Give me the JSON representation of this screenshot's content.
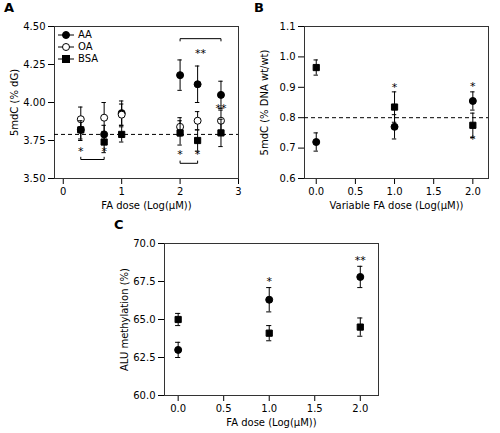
{
  "chart_data": [
    {
      "type": "scatter",
      "title": "A",
      "xlabel": "FA dose (Log(μM))",
      "ylabel": "5mdC (% dG)",
      "xlim": [
        -0.15,
        3.0
      ],
      "ylim": [
        3.5,
        4.5
      ],
      "xticks": [
        0,
        1,
        2,
        3
      ],
      "yticks": [
        {
          "value": 3.5,
          "label": "3.50"
        },
        3.75,
        {
          "value": 4.0,
          "label": "4.00"
        },
        4.25,
        {
          "value": 4.5,
          "label": "4.50"
        }
      ],
      "legend": "upper left",
      "series": [
        {
          "name": "AA",
          "color": "black",
          "marker": "circle",
          "x": [
            0.3,
            0.7,
            1.0,
            2.0,
            2.3,
            2.7
          ],
          "values": [
            3.82,
            3.79,
            3.93,
            4.18,
            4.12,
            4.05
          ],
          "yerr": [
            0.07,
            0.06,
            0.08,
            0.1,
            0.12,
            0.09
          ]
        },
        {
          "name": "OA",
          "color": "black",
          "marker": "open_circle",
          "x": [
            0.3,
            0.7,
            1.0,
            2.0,
            2.3,
            2.7
          ],
          "values": [
            3.89,
            3.9,
            3.92,
            3.84,
            3.88,
            3.88
          ],
          "yerr": [
            0.08,
            0.1,
            0.07,
            0.06,
            0.06,
            0.07
          ]
        },
        {
          "name": "BSA",
          "color": "black",
          "marker": "square",
          "x": [
            0.3,
            0.7,
            1.0,
            2.0,
            2.3,
            2.7
          ],
          "values": [
            3.82,
            3.74,
            3.79,
            3.8,
            3.75,
            3.8
          ],
          "yerr": [
            0.06,
            0.07,
            0.05,
            0.08,
            0.07,
            0.09
          ]
        }
      ],
      "hlines": [
        {
          "y": 3.79,
          "line_style": "dashed"
        }
      ],
      "annotations": [
        {
          "x": 0.3,
          "y": 3.655,
          "text": "*"
        },
        {
          "x": 0.7,
          "y": 3.655,
          "text": "*"
        },
        {
          "x": 2.0,
          "y": 3.635,
          "text": "*"
        },
        {
          "x": 2.3,
          "y": 3.635,
          "text": "*"
        },
        {
          "x": 2.7,
          "y": 3.94,
          "text": "**"
        },
        {
          "x": 2.35,
          "y": 4.3,
          "text": "**"
        }
      ],
      "brackets": [
        {
          "x1": 0.3,
          "x2": 0.7,
          "y": 3.625,
          "side": "bottom"
        },
        {
          "x1": 2.0,
          "x2": 2.3,
          "y": 3.6,
          "side": "bottom"
        },
        {
          "x1": 2.0,
          "x2": 2.7,
          "y": 4.42,
          "side": "top"
        }
      ]
    },
    {
      "type": "scatter",
      "title": "B",
      "xlabel": "Variable FA dose (Log(μM))",
      "ylabel": "5mdC (% DNA wt/wt)",
      "xlim": [
        -0.15,
        2.2
      ],
      "ylim": [
        0.6,
        1.1
      ],
      "xticks": [
        {
          "value": 0,
          "label": "0.0"
        },
        0.5,
        {
          "value": 1.0,
          "label": "1.0"
        },
        1.5,
        {
          "value": 2.0,
          "label": "2.0"
        }
      ],
      "yticks": [
        0.6,
        0.7,
        0.8,
        0.9,
        {
          "value": 1.0,
          "label": "1.0"
        },
        1.1
      ],
      "series": [
        {
          "name": "AA",
          "color": "black",
          "marker": "circle",
          "x": [
            0,
            1,
            2
          ],
          "values": [
            0.72,
            0.77,
            0.855
          ],
          "yerr": [
            0.03,
            0.04,
            0.03
          ]
        },
        {
          "name": "OA",
          "color": "black",
          "marker": "square",
          "x": [
            0,
            1,
            2
          ],
          "values": [
            0.965,
            0.835,
            0.775
          ],
          "yerr": [
            0.025,
            0.05,
            0.04
          ]
        }
      ],
      "hlines": [
        {
          "y": 0.8,
          "line_style": "dashed"
        }
      ],
      "annotations": [
        {
          "x": 1.0,
          "y": 0.887,
          "text": "*"
        },
        {
          "x": 2.0,
          "y": 0.892,
          "text": "*"
        },
        {
          "x": 2.0,
          "y": 0.718,
          "text": "*"
        }
      ]
    },
    {
      "type": "scatter",
      "title": "C",
      "xlabel": "FA dose (Log(μM))",
      "ylabel": "ALU methylation (%)",
      "xlim": [
        -0.15,
        2.2
      ],
      "ylim": [
        60,
        70
      ],
      "xticks": [
        {
          "value": 0,
          "label": "0.0"
        },
        0.5,
        {
          "value": 1.0,
          "label": "1.0"
        },
        1.5,
        {
          "value": 2.0,
          "label": "2.0"
        }
      ],
      "yticks": [
        {
          "value": 60,
          "label": "60.0"
        },
        62.5,
        {
          "value": 65,
          "label": "65.0"
        },
        67.5,
        {
          "value": 70,
          "label": "70.0"
        }
      ],
      "series": [
        {
          "name": "AA",
          "color": "black",
          "marker": "circle",
          "x": [
            0,
            1,
            2
          ],
          "values": [
            63.0,
            66.3,
            67.8
          ],
          "yerr": [
            0.5,
            0.8,
            0.7
          ]
        },
        {
          "name": "OA",
          "color": "black",
          "marker": "square",
          "x": [
            0,
            1,
            2
          ],
          "values": [
            65.0,
            64.1,
            64.5
          ],
          "yerr": [
            0.4,
            0.5,
            0.6
          ]
        }
      ],
      "annotations": [
        {
          "x": 1.0,
          "y": 67.25,
          "text": "*"
        },
        {
          "x": 2.0,
          "y": 68.65,
          "text": "**"
        }
      ]
    }
  ]
}
